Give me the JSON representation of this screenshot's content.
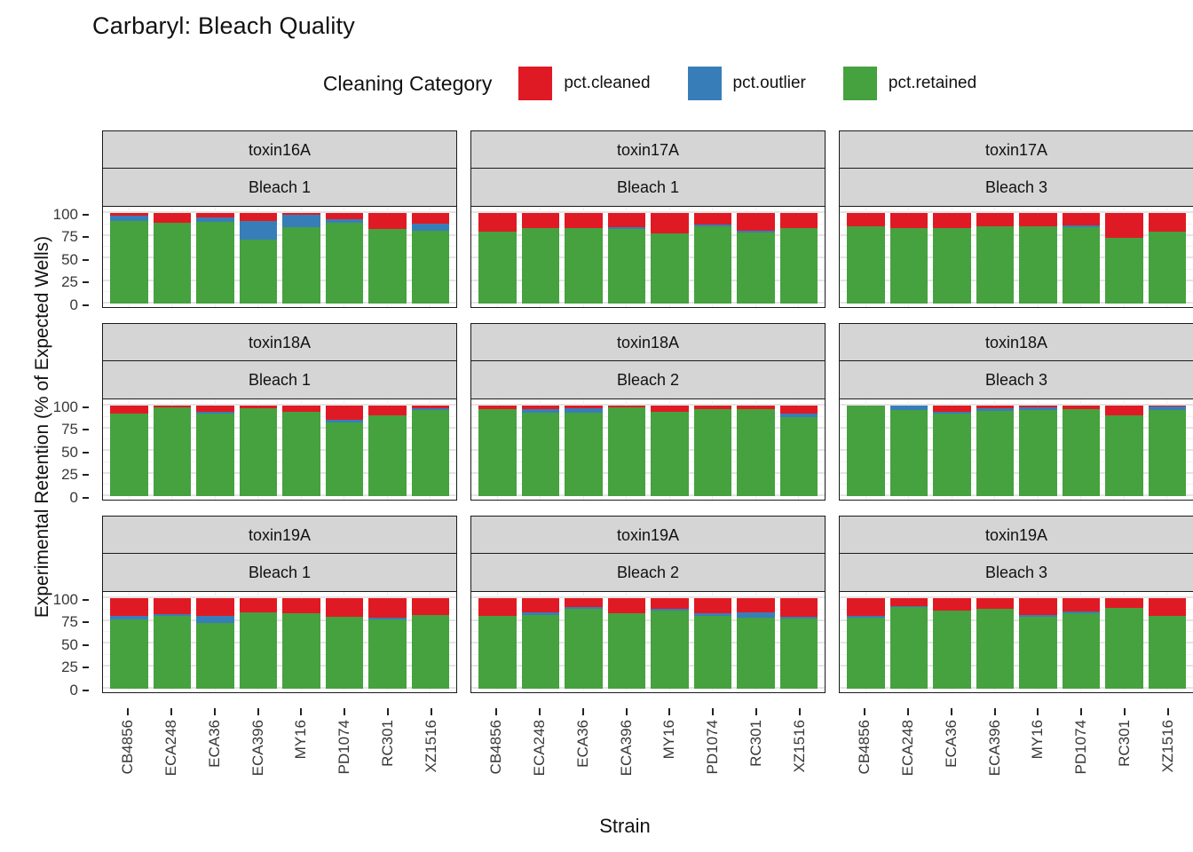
{
  "title": "Carbaryl: Bleach Quality",
  "legend": {
    "title": "Cleaning Category",
    "entries": [
      {
        "label": "pct.cleaned",
        "color": "#e01a24"
      },
      {
        "label": "pct.outlier",
        "color": "#377eb8"
      },
      {
        "label": "pct.retained",
        "color": "#46a13f"
      }
    ]
  },
  "axes": {
    "x_title": "Strain",
    "y_title": "Experimental Retention (% of Expected Wells)",
    "y_ticks": [
      100,
      75,
      50,
      25,
      0
    ],
    "y_range": [
      0,
      100
    ]
  },
  "chart_data": {
    "type": "bar",
    "stacked": true,
    "legend_position": "top",
    "grid": true,
    "categories": [
      "CB4856",
      "ECA248",
      "ECA36",
      "ECA396",
      "MY16",
      "PD1074",
      "RC301",
      "XZ1516"
    ],
    "stack_order_bottom_to_top": [
      "pct.retained",
      "pct.outlier",
      "pct.cleaned"
    ],
    "facet_grid": {
      "rows": 3,
      "cols": 3
    },
    "facets": [
      {
        "row": 1,
        "col": 1,
        "toxin": "toxin16A",
        "bleach": "Bleach 1",
        "series": [
          {
            "name": "pct.retained",
            "values": [
              91,
              89,
              90,
              70,
              84,
              89,
              82,
              80
            ]
          },
          {
            "name": "pct.outlier",
            "values": [
              6,
              0,
              5,
              21,
              14,
              4,
              0,
              8
            ]
          },
          {
            "name": "pct.cleaned",
            "values": [
              3,
              11,
              5,
              9,
              2,
              7,
              18,
              12
            ]
          }
        ]
      },
      {
        "row": 1,
        "col": 2,
        "toxin": "toxin17A",
        "bleach": "Bleach 1",
        "series": [
          {
            "name": "pct.retained",
            "values": [
              79,
              83,
              83,
              82,
              77,
              85,
              78,
              83
            ]
          },
          {
            "name": "pct.outlier",
            "values": [
              0,
              0,
              0,
              2,
              0,
              2,
              2,
              0
            ]
          },
          {
            "name": "pct.cleaned",
            "values": [
              21,
              17,
              17,
              16,
              23,
              13,
              20,
              17
            ]
          }
        ]
      },
      {
        "row": 1,
        "col": 3,
        "toxin": "toxin17A",
        "bleach": "Bleach 3",
        "series": [
          {
            "name": "pct.retained",
            "values": [
              85,
              83,
              83,
              85,
              85,
              84,
              72,
              79
            ]
          },
          {
            "name": "pct.outlier",
            "values": [
              0,
              0,
              0,
              0,
              0,
              2,
              0,
              0
            ]
          },
          {
            "name": "pct.cleaned",
            "values": [
              15,
              17,
              17,
              15,
              15,
              14,
              28,
              21
            ]
          }
        ]
      },
      {
        "row": 2,
        "col": 1,
        "toxin": "toxin18A",
        "bleach": "Bleach 1",
        "series": [
          {
            "name": "pct.retained",
            "values": [
              91,
              98,
              91,
              97,
              93,
              81,
              89,
              95
            ]
          },
          {
            "name": "pct.outlier",
            "values": [
              0,
              0,
              2,
              0,
              0,
              3,
              0,
              2
            ]
          },
          {
            "name": "pct.cleaned",
            "values": [
              9,
              2,
              7,
              3,
              7,
              16,
              11,
              3
            ]
          }
        ]
      },
      {
        "row": 2,
        "col": 2,
        "toxin": "toxin18A",
        "bleach": "Bleach 2",
        "series": [
          {
            "name": "pct.retained",
            "values": [
              96,
              92,
              92,
              98,
              93,
              96,
              96,
              87
            ]
          },
          {
            "name": "pct.outlier",
            "values": [
              0,
              4,
              5,
              0,
              0,
              0,
              0,
              4
            ]
          },
          {
            "name": "pct.cleaned",
            "values": [
              4,
              4,
              3,
              2,
              7,
              4,
              4,
              9
            ]
          }
        ]
      },
      {
        "row": 2,
        "col": 3,
        "toxin": "toxin18A",
        "bleach": "Bleach 3",
        "series": [
          {
            "name": "pct.retained",
            "values": [
              100,
              95,
              91,
              94,
              95,
              96,
              89,
              95
            ]
          },
          {
            "name": "pct.outlier",
            "values": [
              0,
              5,
              2,
              3,
              3,
              0,
              0,
              4
            ]
          },
          {
            "name": "pct.cleaned",
            "values": [
              0,
              0,
              7,
              3,
              2,
              4,
              11,
              1
            ]
          }
        ]
      },
      {
        "row": 3,
        "col": 1,
        "toxin": "toxin19A",
        "bleach": "Bleach 1",
        "series": [
          {
            "name": "pct.retained",
            "values": [
              76,
              80,
              72,
              84,
              83,
              79,
              76,
              81
            ]
          },
          {
            "name": "pct.outlier",
            "values": [
              4,
              2,
              8,
              0,
              0,
              0,
              2,
              0
            ]
          },
          {
            "name": "pct.cleaned",
            "values": [
              20,
              18,
              20,
              16,
              17,
              21,
              22,
              19
            ]
          }
        ]
      },
      {
        "row": 3,
        "col": 2,
        "toxin": "toxin19A",
        "bleach": "Bleach 2",
        "series": [
          {
            "name": "pct.retained",
            "values": [
              80,
              81,
              88,
              83,
              86,
              80,
              78,
              77
            ]
          },
          {
            "name": "pct.outlier",
            "values": [
              0,
              3,
              2,
              0,
              2,
              3,
              6,
              2
            ]
          },
          {
            "name": "pct.cleaned",
            "values": [
              20,
              16,
              10,
              17,
              12,
              17,
              16,
              21
            ]
          }
        ]
      },
      {
        "row": 3,
        "col": 3,
        "toxin": "toxin19A",
        "bleach": "Bleach 3",
        "series": [
          {
            "name": "pct.retained",
            "values": [
              78,
              90,
              86,
              88,
              79,
              83,
              89,
              80
            ]
          },
          {
            "name": "pct.outlier",
            "values": [
              2,
              1,
              0,
              0,
              2,
              2,
              0,
              0
            ]
          },
          {
            "name": "pct.cleaned",
            "values": [
              20,
              9,
              14,
              12,
              19,
              15,
              11,
              20
            ]
          }
        ]
      }
    ]
  },
  "colors": {
    "cleaned": "#e01a24",
    "outlier": "#377eb8",
    "retained": "#46a13f",
    "strip_background": "#d5d5d5",
    "panel_border": "#1a1a1a"
  }
}
